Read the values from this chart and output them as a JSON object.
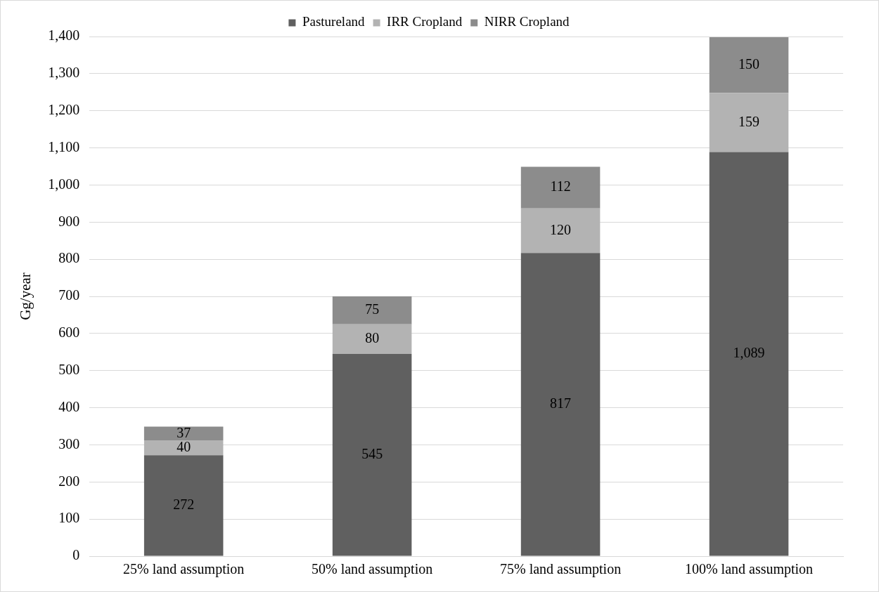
{
  "chart_data": {
    "type": "bar",
    "stacked": true,
    "ylabel": "Gg/year",
    "categories": [
      "25% land assumption",
      "50% land assumption",
      "75% land assumption",
      "100% land assumption"
    ],
    "series": [
      {
        "name": "Pastureland",
        "color": "#606060",
        "values": [
          272,
          545,
          817,
          1089
        ],
        "value_labels": [
          "272",
          "545",
          "817",
          "1,089"
        ]
      },
      {
        "name": "IRR Cropland",
        "color": "#b3b3b3",
        "values": [
          40,
          80,
          120,
          159
        ],
        "value_labels": [
          "40",
          "80",
          "120",
          "159"
        ]
      },
      {
        "name": "NIRR Cropland",
        "color": "#8c8c8c",
        "values": [
          37,
          75,
          112,
          150
        ],
        "value_labels": [
          "37",
          "75",
          "112",
          "150"
        ]
      }
    ],
    "ylim": [
      0,
      1400
    ],
    "yticks": [
      0,
      100,
      200,
      300,
      400,
      500,
      600,
      700,
      800,
      900,
      {
        "value": 1000,
        "label": "1,000"
      },
      {
        "value": 1100,
        "label": "1,100"
      },
      {
        "value": 1200,
        "label": "1,200"
      },
      {
        "value": 1300,
        "label": "1,300"
      },
      {
        "value": 1400,
        "label": "1,400"
      }
    ],
    "grid": "y",
    "legend": "top"
  }
}
